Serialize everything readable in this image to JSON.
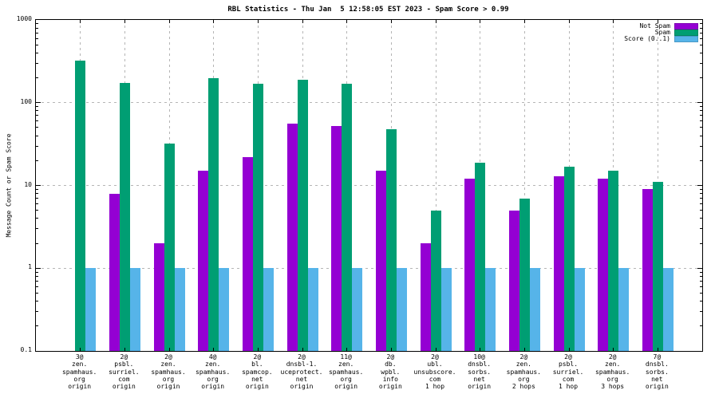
{
  "chart_data": {
    "type": "bar",
    "title": "RBL Statistics - Thu Jan  5 12:58:05 EST 2023 - Spam Score > 0.99",
    "ylabel": "Message Count or Spam Score",
    "xlabel": "",
    "yscale": "log",
    "ylim": [
      0.1,
      1000
    ],
    "ytick_values": [
      0.1,
      1,
      10,
      100,
      1000
    ],
    "ytick_labels": [
      "0.1",
      "1",
      "10",
      "100",
      "1000"
    ],
    "grid_values": [
      1,
      10,
      100
    ],
    "grid": true,
    "legend_position": "top-right-inside",
    "categories": [
      [
        "3@",
        "zen.",
        "spamhaus.",
        "org",
        "origin"
      ],
      [
        "2@",
        "psbl.",
        "surriel.",
        "com",
        "origin"
      ],
      [
        "2@",
        "zen.",
        "spamhaus.",
        "org",
        "origin"
      ],
      [
        "4@",
        "zen.",
        "spamhaus.",
        "org",
        "origin"
      ],
      [
        "2@",
        "bl.",
        "spamcop.",
        "net",
        "origin"
      ],
      [
        "2@",
        "dnsbl-1.",
        "uceprotect.",
        "net",
        "origin"
      ],
      [
        "11@",
        "zen.",
        "spamhaus.",
        "org",
        "origin"
      ],
      [
        "2@",
        "db.",
        "wpbl.",
        "info",
        "origin"
      ],
      [
        "2@",
        "ubl.",
        "unsubscore.",
        "com",
        "1 hop"
      ],
      [
        "10@",
        "dnsbl.",
        "sorbs.",
        "net",
        "origin"
      ],
      [
        "2@",
        "zen.",
        "spamhaus.",
        "org",
        "2 hops"
      ],
      [
        "2@",
        "psbl.",
        "surriel.",
        "com",
        "1 hop"
      ],
      [
        "2@",
        "zen.",
        "spamhaus.",
        "org",
        "3 hops"
      ],
      [
        "7@",
        "dnsbl.",
        "sorbs.",
        "net",
        "origin"
      ]
    ],
    "series": [
      {
        "name": "Not Spam",
        "color": "#9400d3",
        "values": [
          null,
          8,
          2,
          15,
          22,
          56,
          52,
          15,
          2,
          12,
          5,
          13,
          12,
          9
        ]
      },
      {
        "name": "Spam",
        "color": "#009e73",
        "values": [
          320,
          175,
          32,
          200,
          170,
          190,
          170,
          48,
          5,
          19,
          7,
          17,
          15,
          11
        ]
      },
      {
        "name": "Score (0..1)",
        "color": "#56b4e9",
        "values": [
          1,
          1,
          1,
          1,
          1,
          1,
          1,
          1,
          1,
          1,
          1,
          1,
          1,
          1
        ]
      }
    ]
  }
}
